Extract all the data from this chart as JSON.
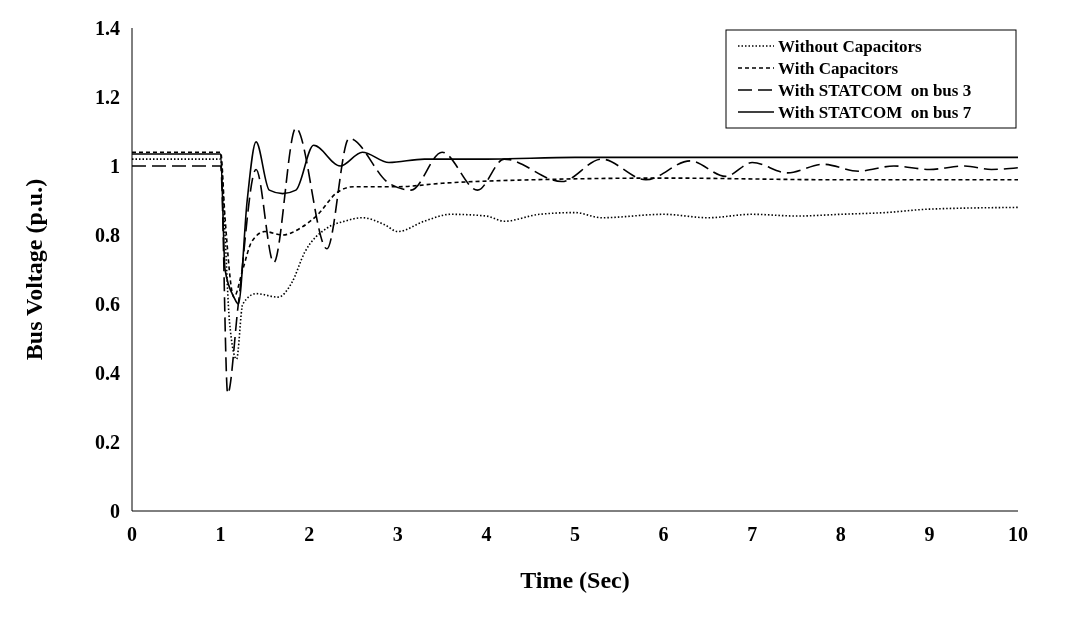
{
  "chart_data": {
    "type": "line",
    "xlabel": "Time (Sec)",
    "ylabel": "Bus Voltage (p.u.)",
    "xlim": [
      0,
      10
    ],
    "xticks": [
      0,
      1,
      2,
      3,
      4,
      5,
      6,
      7,
      8,
      9,
      10
    ],
    "ylim": [
      0,
      1.4
    ],
    "yticks": [
      0,
      0.2,
      0.4,
      0.6,
      0.8,
      1,
      1.2,
      1.4
    ],
    "grid": false,
    "legend": "top right",
    "marker": "none",
    "series": [
      {
        "name": "Without Capacitors",
        "color": "#000000",
        "line_style": "dotted",
        "x": [
          0,
          1,
          1.05,
          1.1,
          1.18,
          1.25,
          1.4,
          1.65,
          1.8,
          1.95,
          2.2,
          2.4,
          2.6,
          2.85,
          3.0,
          3.3,
          3.6,
          4.0,
          4.2,
          4.6,
          5.0,
          5.3,
          6.0,
          6.5,
          7.0,
          7.5,
          8.0,
          8.5,
          9.0,
          10
        ],
        "values": [
          1.02,
          1.02,
          0.8,
          0.55,
          0.44,
          0.6,
          0.63,
          0.62,
          0.66,
          0.75,
          0.82,
          0.84,
          0.85,
          0.83,
          0.81,
          0.84,
          0.86,
          0.855,
          0.84,
          0.86,
          0.865,
          0.85,
          0.86,
          0.85,
          0.86,
          0.855,
          0.86,
          0.865,
          0.875,
          0.88
        ]
      },
      {
        "name": "With Capacitors",
        "color": "#000000",
        "line_style": "dashed",
        "x": [
          0,
          1,
          1.05,
          1.15,
          1.25,
          1.35,
          1.5,
          1.7,
          1.9,
          2.1,
          2.3,
          2.5,
          3.0,
          3.5,
          4.5,
          6.0,
          8.0,
          10
        ],
        "values": [
          1.04,
          1.04,
          0.85,
          0.62,
          0.7,
          0.78,
          0.81,
          0.8,
          0.82,
          0.86,
          0.92,
          0.94,
          0.94,
          0.95,
          0.96,
          0.965,
          0.96,
          0.96
        ]
      },
      {
        "name": "With STATCOM  on bus 3",
        "color": "#000000",
        "line_style": "longdash",
        "x": [
          0,
          1,
          1.08,
          1.2,
          1.4,
          1.6,
          1.85,
          2.2,
          2.45,
          2.9,
          3.15,
          3.5,
          3.9,
          4.2,
          4.85,
          5.3,
          5.8,
          6.3,
          6.7,
          7.0,
          7.4,
          7.8,
          8.2,
          8.6,
          9.0,
          9.4,
          9.7,
          10
        ],
        "values": [
          1.0,
          1.0,
          0.34,
          0.6,
          0.99,
          0.72,
          1.11,
          0.76,
          1.08,
          0.95,
          0.93,
          1.04,
          0.93,
          1.02,
          0.955,
          1.02,
          0.96,
          1.015,
          0.97,
          1.01,
          0.98,
          1.005,
          0.985,
          1.0,
          0.99,
          1.0,
          0.99,
          0.995
        ]
      },
      {
        "name": "With STATCOM  on bus 7",
        "color": "#000000",
        "line_style": "solid",
        "x": [
          0,
          1,
          1.05,
          1.15,
          1.2,
          1.3,
          1.4,
          1.55,
          1.7,
          1.85,
          2.05,
          2.35,
          2.6,
          2.9,
          3.3,
          4.0,
          5.0,
          10
        ],
        "values": [
          1.035,
          1.035,
          0.7,
          0.62,
          0.6,
          0.9,
          1.07,
          0.93,
          0.92,
          0.93,
          1.06,
          1.0,
          1.04,
          1.01,
          1.02,
          1.02,
          1.025,
          1.025
        ]
      }
    ]
  }
}
